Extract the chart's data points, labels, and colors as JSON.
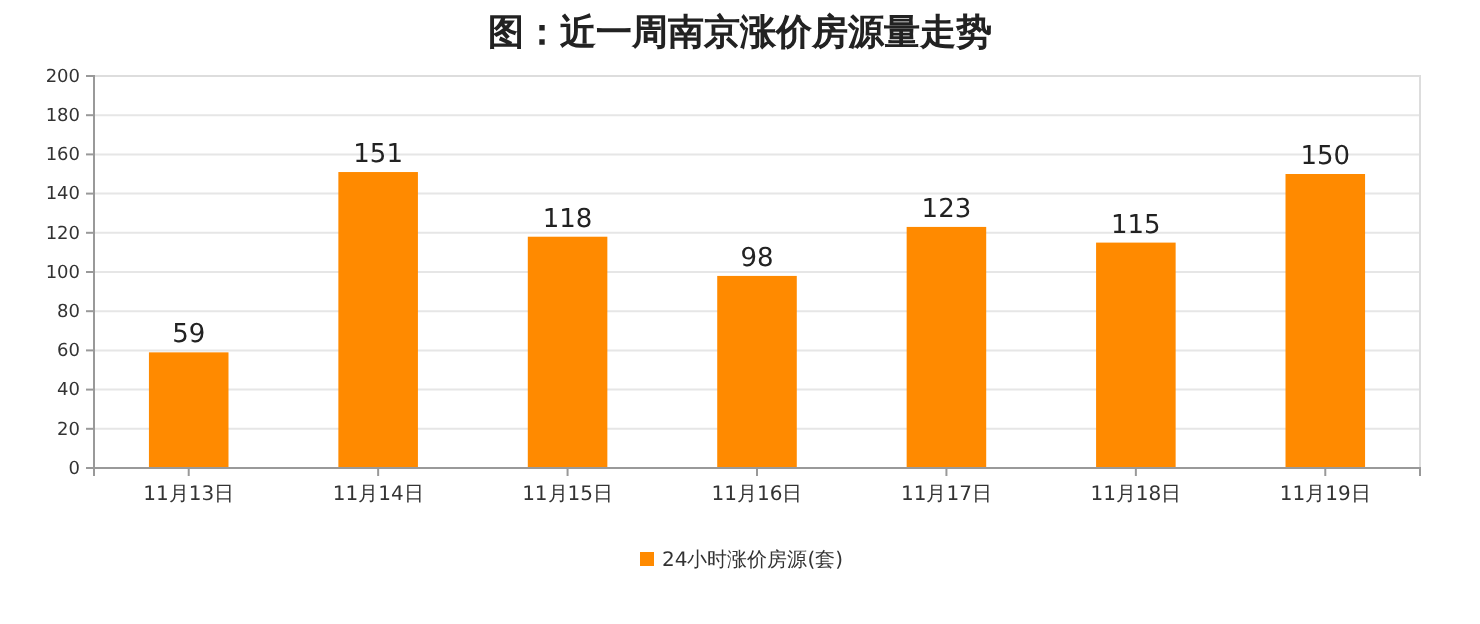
{
  "chart_data": {
    "type": "bar",
    "title": "图：近一周南京涨价房源量走势",
    "categories": [
      "11月13日",
      "11月14日",
      "11月15日",
      "11月16日",
      "11月17日",
      "11月18日",
      "11月19日"
    ],
    "series": [
      {
        "name": "24小时涨价房源(套)",
        "color": "#ff8a00",
        "values": [
          59,
          151,
          118,
          98,
          123,
          115,
          150
        ]
      }
    ],
    "ylim": [
      0,
      200
    ],
    "yticks": [
      0,
      20,
      40,
      60,
      80,
      100,
      120,
      140,
      160,
      180,
      200
    ],
    "grid": "y",
    "data_labels": true,
    "legend": "bottom"
  }
}
